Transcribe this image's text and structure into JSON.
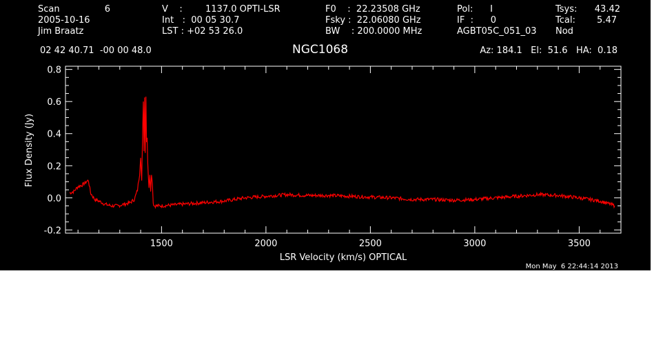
{
  "header": {
    "scan_label": "Scan",
    "scan_number": "6",
    "date": "2005-10-16",
    "observer": "Jim Braatz",
    "v_label": "V    :",
    "v_value": "1137.0 OPTI-LSR",
    "int_line": "Int   :  00 05 30.7",
    "lst_line": "LST : +02 53 26.0",
    "f0_line": "F0    :  22.23508 GHz",
    "fsky_line": "Fsky :  22.06080 GHz",
    "bw_line": "BW    : 200.0000 MHz",
    "pol_line": "Pol:      I",
    "if_line": "IF  :      0",
    "project": "AGBT05C_051_03",
    "tsys_label": "Tsys:",
    "tsys_value": "43.42",
    "tcal_label": "Tcal:",
    "tcal_value": "5.47",
    "mode": "Nod",
    "coords": "02 42 40.71  -00 00 48.0",
    "source": "NGC1068",
    "az_el_ha": "Az: 184.1   El:  51.6   HA:  0.18"
  },
  "footer": {
    "timestamp": "Mon May  6 22:44:14 2013"
  },
  "colors": {
    "background": "#000000",
    "foreground": "#ffffff",
    "series": "#ff0000"
  },
  "chart_data": {
    "type": "line",
    "title": "NGC1068",
    "xlabel": "LSR Velocity (km/s) OPTICAL",
    "ylabel": "Flux Density (Jy)",
    "xlim": [
      1040,
      3700
    ],
    "ylim": [
      -0.22,
      0.82
    ],
    "xticks": [
      1500,
      2000,
      2500,
      3000,
      3500
    ],
    "yticks": [
      -0.2,
      0.0,
      0.2,
      0.4,
      0.6,
      0.8
    ],
    "xtick_labels": [
      "1500",
      "2000",
      "2500",
      "3000",
      "3500"
    ],
    "ytick_labels": [
      "-0.2",
      "0.0",
      "0.2",
      "0.4",
      "0.6",
      "0.8"
    ],
    "grid": false,
    "series": [
      {
        "color": "#ff0000",
        "x": [
          1060,
          1080,
          1100,
          1120,
          1140,
          1150,
          1160,
          1180,
          1200,
          1230,
          1260,
          1290,
          1320,
          1350,
          1370,
          1385,
          1395,
          1400,
          1405,
          1410,
          1413,
          1416,
          1419,
          1422,
          1425,
          1428,
          1431,
          1434,
          1437,
          1440,
          1444,
          1448,
          1452,
          1456,
          1460,
          1465,
          1500,
          1600,
          1700,
          1800,
          1900,
          2000,
          2100,
          2200,
          2300,
          2400,
          2500,
          2600,
          2700,
          2800,
          2900,
          3000,
          3100,
          3200,
          3300,
          3400,
          3500,
          3550,
          3600,
          3650,
          3670
        ],
        "y": [
          0.03,
          0.04,
          0.07,
          0.08,
          0.1,
          0.11,
          0.03,
          -0.01,
          -0.02,
          -0.04,
          -0.05,
          -0.05,
          -0.04,
          -0.03,
          -0.01,
          0.05,
          0.15,
          0.26,
          0.1,
          0.45,
          0.6,
          0.3,
          0.63,
          0.28,
          0.64,
          0.35,
          0.38,
          0.22,
          0.12,
          0.07,
          0.15,
          0.05,
          0.14,
          0.1,
          -0.03,
          -0.05,
          -0.05,
          -0.04,
          -0.03,
          -0.02,
          0.0,
          0.01,
          0.02,
          0.015,
          0.015,
          0.01,
          0.005,
          0.0,
          -0.01,
          -0.01,
          -0.015,
          -0.01,
          0.0,
          0.01,
          0.02,
          0.015,
          0.0,
          -0.01,
          -0.02,
          -0.04,
          -0.05
        ]
      }
    ]
  }
}
